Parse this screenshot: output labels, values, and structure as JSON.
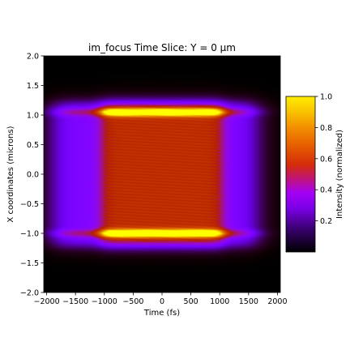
{
  "chart_data": {
    "type": "heatmap",
    "title": "im_focus Time Slice: Y = 0 μm",
    "xlabel": "Time (fs)",
    "ylabel": "X coordinates (microns)",
    "xlim": [
      -2050,
      2050
    ],
    "ylim": [
      -2.0,
      2.0
    ],
    "x_ticks": [
      -2000,
      -1500,
      -1000,
      -500,
      0,
      500,
      1000,
      1500,
      2000
    ],
    "x_tick_labels": [
      "−2000",
      "−1500",
      "−1000",
      "−500",
      "0",
      "500",
      "1000",
      "1500",
      "2000"
    ],
    "y_ticks": [
      2.0,
      1.5,
      1.0,
      0.5,
      0.0,
      -0.5,
      -1.0,
      -1.5,
      -2.0
    ],
    "y_tick_labels": [
      "2.0",
      "1.5",
      "1.0",
      "0.5",
      "0.0",
      "−0.5",
      "−1.0",
      "−1.5",
      "−2.0"
    ],
    "colormap": "gnuplot",
    "colorbar": {
      "label": "Intensity (normalized)",
      "range": [
        0.0,
        1.0
      ],
      "ticks": [
        1.0,
        0.8,
        0.6,
        0.4,
        0.2
      ],
      "tick_labels": [
        "1.0",
        "0.8",
        "0.6",
        "0.4",
        "0.2"
      ]
    },
    "features": {
      "core_time_range_fs": [
        -1050,
        1050
      ],
      "wing_time_range_fs": [
        -1850,
        1600
      ],
      "x_extent_microns": [
        -1.2,
        1.2
      ],
      "edge_peak_x_microns": [
        1.05,
        -1.0
      ],
      "core_intensity": 0.6,
      "edge_peak_intensity": 1.0,
      "wing_intensity": 0.25,
      "fringe_period_microns": 0.05
    }
  }
}
